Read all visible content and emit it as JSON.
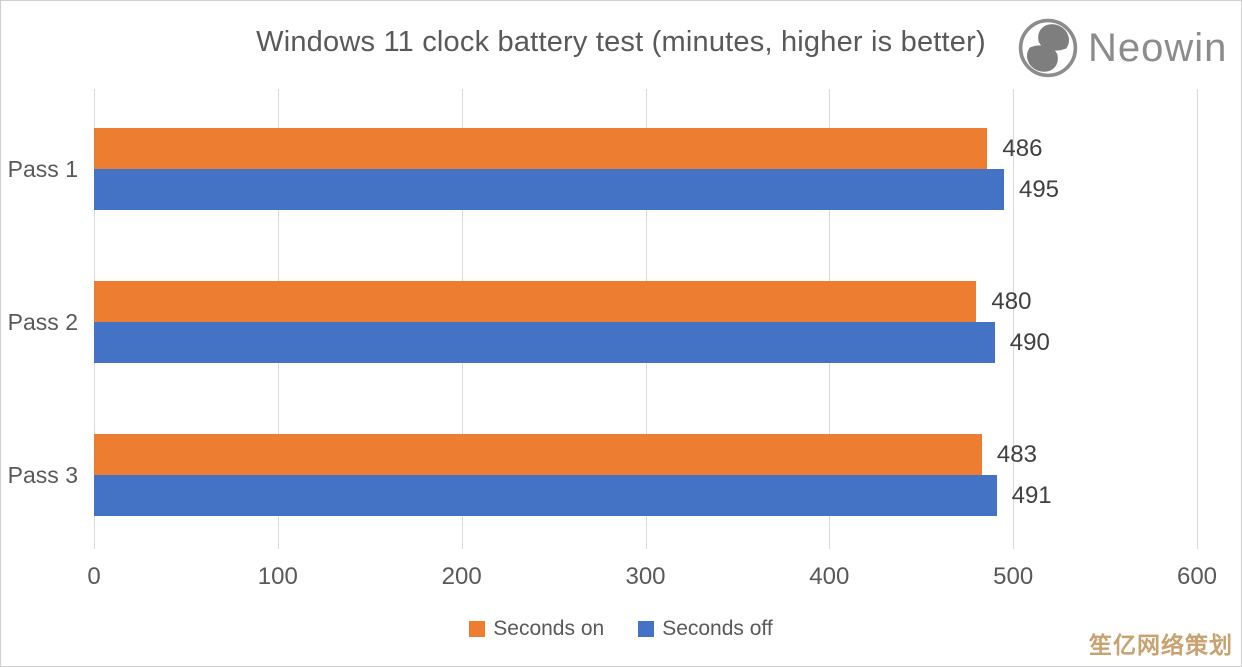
{
  "title": "Windows 11 clock battery test (minutes, higher is better)",
  "logo": {
    "text": "Neowin"
  },
  "watermark": "笙亿网络策划",
  "colors": {
    "seconds_on": "#ED7D31",
    "seconds_off": "#4472C4",
    "gridline": "#D9D9D9",
    "axis_text": "#595959",
    "value_text": "#404040",
    "logo_gray": "#8c8c8c",
    "watermark": "#C8A26F"
  },
  "chart_data": {
    "type": "bar",
    "orientation": "horizontal",
    "title": "Windows 11 clock battery test (minutes, higher is better)",
    "categories": [
      "Pass 1",
      "Pass 2",
      "Pass 3"
    ],
    "series": [
      {
        "name": "Seconds on",
        "color": "#ED7D31",
        "values": [
          486,
          480,
          483
        ]
      },
      {
        "name": "Seconds off",
        "color": "#4472C4",
        "values": [
          495,
          490,
          491
        ]
      }
    ],
    "xlabel": "",
    "ylabel": "",
    "xlim": [
      0,
      600
    ],
    "xticks": [
      0,
      100,
      200,
      300,
      400,
      500,
      600
    ],
    "grid": true,
    "value_labels": true,
    "legend_position": "bottom"
  }
}
